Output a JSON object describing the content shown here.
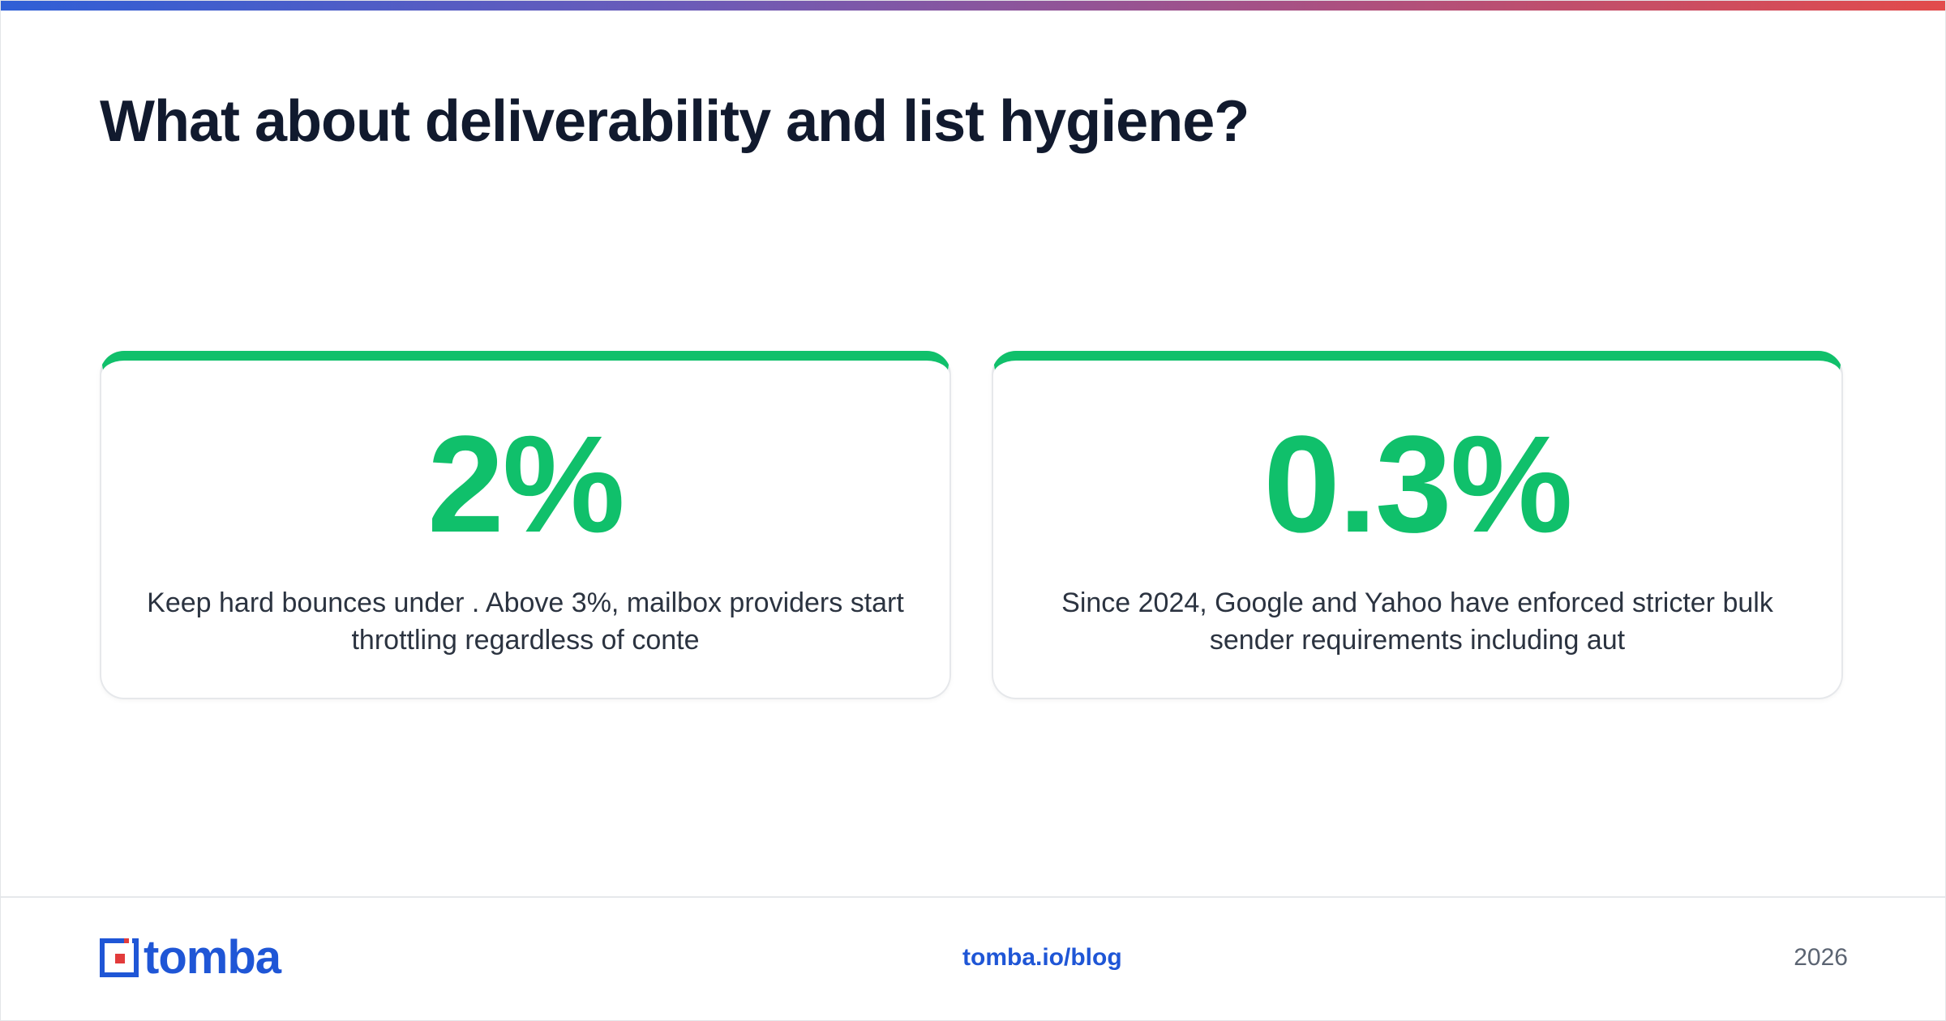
{
  "header": {
    "title": "What about deliverability and list hygiene?"
  },
  "stats": [
    {
      "value": "2%",
      "description": "Keep hard bounces under . Above 3%, mailbox providers start throttling regardless of conte"
    },
    {
      "value": "0.3%",
      "description": "Since 2024, Google and Yahoo have enforced stricter bulk sender requirements including aut"
    }
  ],
  "footer": {
    "brand": "tomba",
    "link": "tomba.io/blog",
    "year": "2026"
  },
  "colors": {
    "accent": "#10c06b",
    "brand": "#1f56d6",
    "title": "#111a2e",
    "logo_red": "#e23b3b"
  },
  "icons": {
    "logo": "tomba-logo-icon"
  }
}
